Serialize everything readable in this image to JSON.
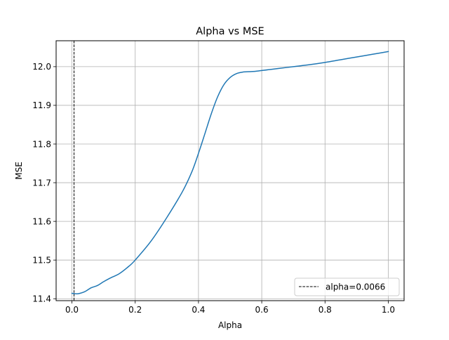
{
  "chart_data": {
    "type": "line",
    "title": "Alpha vs MSE",
    "xlabel": "Alpha",
    "ylabel": "MSE",
    "xlim": [
      -0.05,
      1.05
    ],
    "ylim": [
      11.395,
      12.067
    ],
    "xticks": [
      0.0,
      0.2,
      0.4,
      0.6,
      0.8,
      1.0
    ],
    "xtick_labels": [
      "0.0",
      "0.2",
      "0.4",
      "0.6",
      "0.8",
      "1.0"
    ],
    "yticks": [
      11.4,
      11.5,
      11.6,
      11.7,
      11.8,
      11.9,
      12.0
    ],
    "ytick_labels": [
      "11.4",
      "11.5",
      "11.6",
      "11.7",
      "11.8",
      "11.9",
      "12.0"
    ],
    "grid": true,
    "legend_position": "bottom-right",
    "series": [
      {
        "color": "#1f77b4",
        "x": [
          0.0,
          0.01,
          0.02,
          0.04,
          0.06,
          0.08,
          0.1,
          0.12,
          0.15,
          0.18,
          0.2,
          0.25,
          0.3,
          0.35,
          0.38,
          0.4,
          0.42,
          0.44,
          0.46,
          0.48,
          0.5,
          0.52,
          0.54,
          0.56,
          0.58,
          0.6,
          0.65,
          0.7,
          0.75,
          0.8,
          0.85,
          0.9,
          0.95,
          1.0
        ],
        "y": [
          11.414,
          11.413,
          11.413,
          11.418,
          11.428,
          11.434,
          11.444,
          11.453,
          11.465,
          11.484,
          11.5,
          11.549,
          11.61,
          11.678,
          11.73,
          11.776,
          11.826,
          11.877,
          11.921,
          11.953,
          11.972,
          11.982,
          11.986,
          11.987,
          11.988,
          11.99,
          11.995,
          12.0,
          12.005,
          12.011,
          12.018,
          12.025,
          12.032,
          12.039
        ]
      }
    ],
    "vline": {
      "x": 0.0066,
      "label": "alpha=0.0066",
      "color": "#000000",
      "style": "dashed"
    }
  }
}
